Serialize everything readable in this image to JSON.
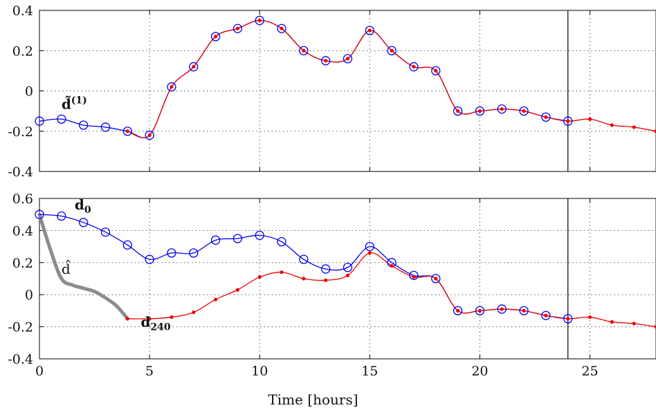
{
  "chart_data": [
    {
      "type": "line",
      "title": "",
      "xlabel": "",
      "ylabel": "",
      "xlim": [
        0,
        28
      ],
      "ylim": [
        -0.4,
        0.4
      ],
      "xticks": [
        0,
        5,
        10,
        15,
        20,
        25
      ],
      "yticks": [
        -0.4,
        -0.2,
        0,
        0.2,
        0.4
      ],
      "ytick_labels": [
        "-0.4",
        "-0.2",
        "0",
        "0.2",
        "0.4"
      ],
      "grid": true,
      "vline_x": 24,
      "series": [
        {
          "color": "#0000ee",
          "marker": "open-circle",
          "x": [
            0,
            1,
            2,
            3,
            4,
            5,
            6,
            7,
            8,
            9,
            10,
            11,
            12,
            13,
            14,
            15,
            16,
            17,
            18,
            19,
            20,
            21,
            22,
            23,
            24
          ],
          "y": [
            -0.15,
            -0.14,
            -0.17,
            -0.18,
            -0.2,
            -0.22,
            0.02,
            0.12,
            0.27,
            0.31,
            0.35,
            0.31,
            0.2,
            0.15,
            0.16,
            0.3,
            0.2,
            0.12,
            0.1,
            -0.1,
            -0.1,
            -0.09,
            -0.1,
            -0.13,
            -0.15
          ]
        },
        {
          "color": "#ee0000",
          "marker": "dot",
          "x": [
            4,
            5,
            6,
            7,
            8,
            9,
            10,
            11,
            12,
            13,
            14,
            15,
            16,
            17,
            18,
            19,
            20,
            21,
            22,
            23,
            24,
            25,
            26,
            27,
            28
          ],
          "y": [
            -0.2,
            -0.22,
            0.02,
            0.12,
            0.27,
            0.31,
            0.35,
            0.31,
            0.2,
            0.15,
            0.16,
            0.3,
            0.2,
            0.12,
            0.1,
            -0.1,
            -0.1,
            -0.09,
            -0.1,
            -0.13,
            -0.15,
            -0.14,
            -0.17,
            -0.18,
            -0.2
          ]
        }
      ],
      "annotations": [
        {
          "text": "d̃",
          "sup": "(1)",
          "x": 1.0,
          "y": -0.09
        }
      ]
    },
    {
      "type": "line",
      "title": "",
      "xlabel": "Time [hours]",
      "ylabel": "",
      "xlim": [
        0,
        28
      ],
      "ylim": [
        -0.4,
        0.6
      ],
      "xticks": [
        0,
        5,
        10,
        15,
        20,
        25
      ],
      "xtick_labels": [
        "0",
        "5",
        "10",
        "15",
        "20",
        "25"
      ],
      "yticks": [
        -0.4,
        -0.2,
        0,
        0.2,
        0.4,
        0.6
      ],
      "ytick_labels": [
        "-0.4",
        "-0.2",
        "0",
        "0.2",
        "0.4",
        "0.6"
      ],
      "grid": true,
      "vline_x": 24,
      "series": [
        {
          "color": "#0000ee",
          "marker": "open-circle",
          "x": [
            0,
            1,
            2,
            3,
            4,
            5,
            6,
            7,
            8,
            9,
            10,
            11,
            12,
            13,
            14,
            15,
            16,
            17,
            18,
            19,
            20,
            21,
            22,
            23,
            24
          ],
          "y": [
            0.5,
            0.49,
            0.45,
            0.39,
            0.31,
            0.22,
            0.26,
            0.26,
            0.34,
            0.35,
            0.37,
            0.33,
            0.22,
            0.16,
            0.17,
            0.3,
            0.2,
            0.12,
            0.1,
            -0.1,
            -0.1,
            -0.09,
            -0.1,
            -0.13,
            -0.15
          ]
        },
        {
          "color": "#ee0000",
          "marker": "dot",
          "x": [
            4,
            5,
            6,
            7,
            8,
            9,
            10,
            11,
            12,
            13,
            14,
            15,
            16,
            17,
            18,
            19,
            20,
            21,
            22,
            23,
            24,
            25,
            26,
            27,
            28
          ],
          "y": [
            -0.15,
            -0.15,
            -0.14,
            -0.11,
            -0.03,
            0.03,
            0.11,
            0.14,
            0.1,
            0.09,
            0.12,
            0.26,
            0.18,
            0.11,
            0.1,
            -0.1,
            -0.1,
            -0.09,
            -0.1,
            -0.13,
            -0.15,
            -0.14,
            -0.17,
            -0.18,
            -0.2
          ]
        },
        {
          "color": "#8c8c8c",
          "marker": "none",
          "x": [
            0,
            0.5,
            1,
            1.5,
            2,
            2.5,
            3,
            3.5,
            4
          ],
          "y": [
            0.5,
            0.28,
            0.1,
            0.06,
            0.04,
            0.02,
            -0.02,
            -0.07,
            -0.15
          ]
        }
      ],
      "annotations": [
        {
          "text": "d",
          "sub": "0",
          "x": 1.6,
          "y": 0.53
        },
        {
          "text": "d̂",
          "x": 1.0,
          "y": 0.13
        },
        {
          "text": "d",
          "sub": "240",
          "x": 4.6,
          "y": -0.2
        }
      ]
    }
  ]
}
